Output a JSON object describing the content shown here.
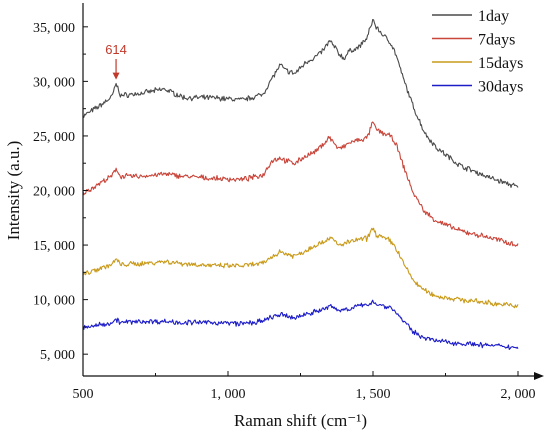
{
  "chart_data": {
    "type": "line",
    "xlabel": "Raman shift (cm⁻¹)",
    "ylabel": "Intensity (a.u.)",
    "xlim": [
      500,
      2000
    ],
    "ylim": [
      3000,
      37000
    ],
    "x_ticks": [
      500,
      1000,
      1500,
      2000
    ],
    "x_tick_labels": [
      "500",
      "1, 000",
      "1, 500",
      "2, 000"
    ],
    "y_ticks": [
      5000,
      10000,
      15000,
      20000,
      25000,
      30000,
      35000
    ],
    "y_tick_labels": [
      "5, 000",
      "10, 000",
      "15, 000",
      "20, 000",
      "25, 000",
      "30, 000",
      "35, 000"
    ],
    "grid": false,
    "legend_position": "top-right",
    "annotation": {
      "text": "614",
      "x": 614,
      "color": "#c0392b"
    },
    "series": [
      {
        "name": "1day",
        "color": "#4a4a4a",
        "x": [
          500,
          560,
          600,
          614,
          630,
          700,
          780,
          850,
          950,
          1050,
          1120,
          1150,
          1180,
          1200,
          1230,
          1270,
          1300,
          1330,
          1350,
          1370,
          1380,
          1400,
          1420,
          1450,
          1480,
          1500,
          1510,
          1540,
          1560,
          1580,
          1600,
          1640,
          1680,
          1720,
          1800,
          1900,
          2000
        ],
        "y": [
          26800,
          27800,
          28600,
          29800,
          28700,
          28900,
          29300,
          28500,
          28500,
          28300,
          28800,
          30200,
          31500,
          31000,
          30700,
          31800,
          32200,
          32900,
          33700,
          33100,
          32600,
          32100,
          32800,
          33100,
          34000,
          35700,
          35000,
          34100,
          33600,
          32400,
          30600,
          27600,
          25200,
          23900,
          22300,
          21200,
          20300
        ]
      },
      {
        "name": "7days",
        "color": "#c9453a",
        "x": [
          500,
          560,
          600,
          614,
          630,
          700,
          780,
          850,
          950,
          1050,
          1120,
          1150,
          1180,
          1200,
          1230,
          1270,
          1300,
          1330,
          1350,
          1370,
          1380,
          1400,
          1420,
          1450,
          1480,
          1500,
          1510,
          1540,
          1560,
          1580,
          1600,
          1640,
          1680,
          1720,
          1800,
          1900,
          2000
        ],
        "y": [
          19700,
          20700,
          21300,
          22000,
          21300,
          21300,
          21500,
          21300,
          21100,
          21000,
          21400,
          22700,
          23000,
          22700,
          22500,
          23200,
          23500,
          24300,
          24900,
          24200,
          23800,
          24000,
          24400,
          24600,
          24800,
          26300,
          25600,
          25200,
          25000,
          24200,
          22600,
          19700,
          18000,
          17200,
          16300,
          15700,
          15000
        ]
      },
      {
        "name": "15days",
        "color": "#c99a1a",
        "x": [
          500,
          560,
          600,
          614,
          630,
          700,
          780,
          850,
          950,
          1050,
          1120,
          1150,
          1180,
          1200,
          1230,
          1270,
          1300,
          1330,
          1350,
          1370,
          1380,
          1400,
          1420,
          1450,
          1480,
          1500,
          1510,
          1540,
          1560,
          1580,
          1600,
          1640,
          1680,
          1720,
          1800,
          1900,
          2000
        ],
        "y": [
          12300,
          12900,
          13200,
          13700,
          13200,
          13300,
          13500,
          13300,
          13100,
          13100,
          13300,
          13900,
          14400,
          14200,
          14000,
          14500,
          15000,
          15300,
          15700,
          15300,
          15000,
          15100,
          15300,
          15500,
          15600,
          16600,
          16000,
          15600,
          15400,
          14700,
          13600,
          11700,
          10800,
          10300,
          10000,
          9700,
          9400
        ]
      },
      {
        "name": "30days",
        "color": "#1c1cc8",
        "x": [
          500,
          560,
          600,
          614,
          630,
          700,
          780,
          850,
          950,
          1050,
          1120,
          1150,
          1180,
          1200,
          1230,
          1270,
          1300,
          1330,
          1350,
          1370,
          1380,
          1400,
          1420,
          1450,
          1480,
          1500,
          1510,
          1540,
          1560,
          1580,
          1600,
          1640,
          1680,
          1720,
          1800,
          1900,
          2000
        ],
        "y": [
          7400,
          7700,
          7900,
          8200,
          7900,
          8000,
          8000,
          7900,
          7900,
          7800,
          8000,
          8400,
          8600,
          8500,
          8300,
          8700,
          8900,
          9100,
          9400,
          9200,
          9000,
          9100,
          9200,
          9400,
          9500,
          9900,
          9600,
          9400,
          9300,
          8800,
          8200,
          7000,
          6500,
          6200,
          6000,
          5800,
          5600
        ]
      }
    ]
  }
}
